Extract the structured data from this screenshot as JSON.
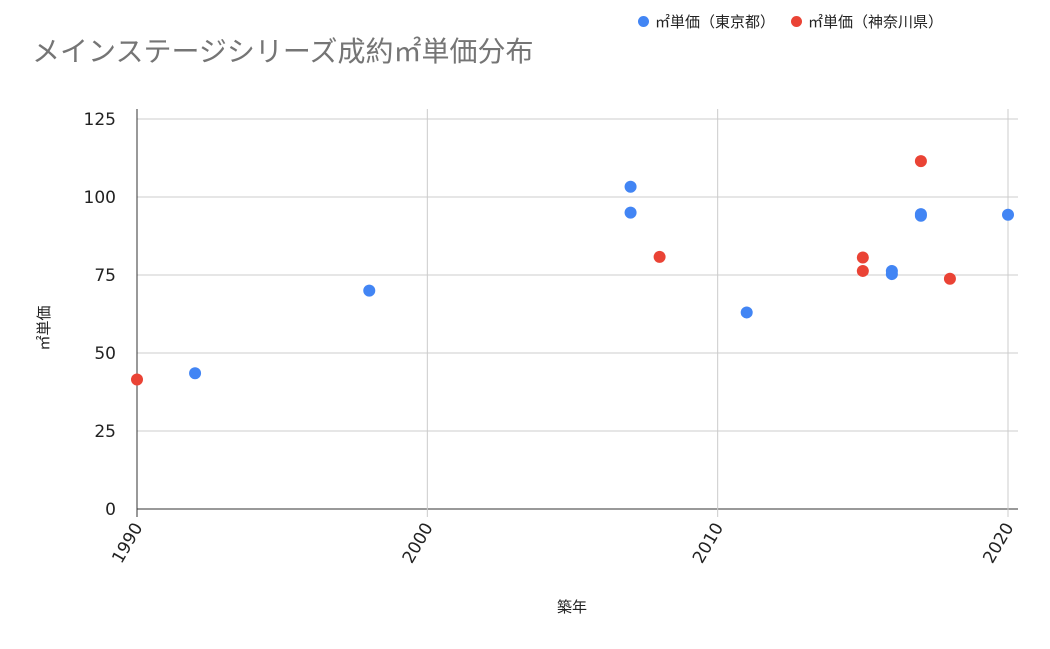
{
  "chart_data": {
    "type": "scatter",
    "title": "メインステージシリーズ成約㎡単価分布",
    "xlabel": "築年",
    "ylabel": "㎡単価",
    "xlim": [
      1990,
      2020
    ],
    "ylim": [
      0,
      125
    ],
    "xticks": [
      1990,
      2000,
      2010,
      2020
    ],
    "yticks": [
      0,
      25,
      50,
      75,
      100,
      125
    ],
    "grid": true,
    "legend_position": "top-right",
    "series": [
      {
        "name": "㎡単価（東京都）",
        "color": "#4285f4",
        "points": [
          [
            1992,
            43.5
          ],
          [
            1998,
            70
          ],
          [
            2007,
            103.3
          ],
          [
            2007,
            95
          ],
          [
            2011,
            63
          ],
          [
            2016,
            76.3
          ],
          [
            2016,
            75.3
          ],
          [
            2017,
            94.5
          ],
          [
            2017,
            94
          ],
          [
            2020,
            94.3
          ]
        ]
      },
      {
        "name": "㎡単価（神奈川県）",
        "color": "#ea4335",
        "points": [
          [
            1990,
            41.5
          ],
          [
            2008,
            80.8
          ],
          [
            2015,
            80.6
          ],
          [
            2015,
            76.3
          ],
          [
            2017,
            111.5
          ],
          [
            2018,
            73.8
          ]
        ]
      }
    ]
  }
}
